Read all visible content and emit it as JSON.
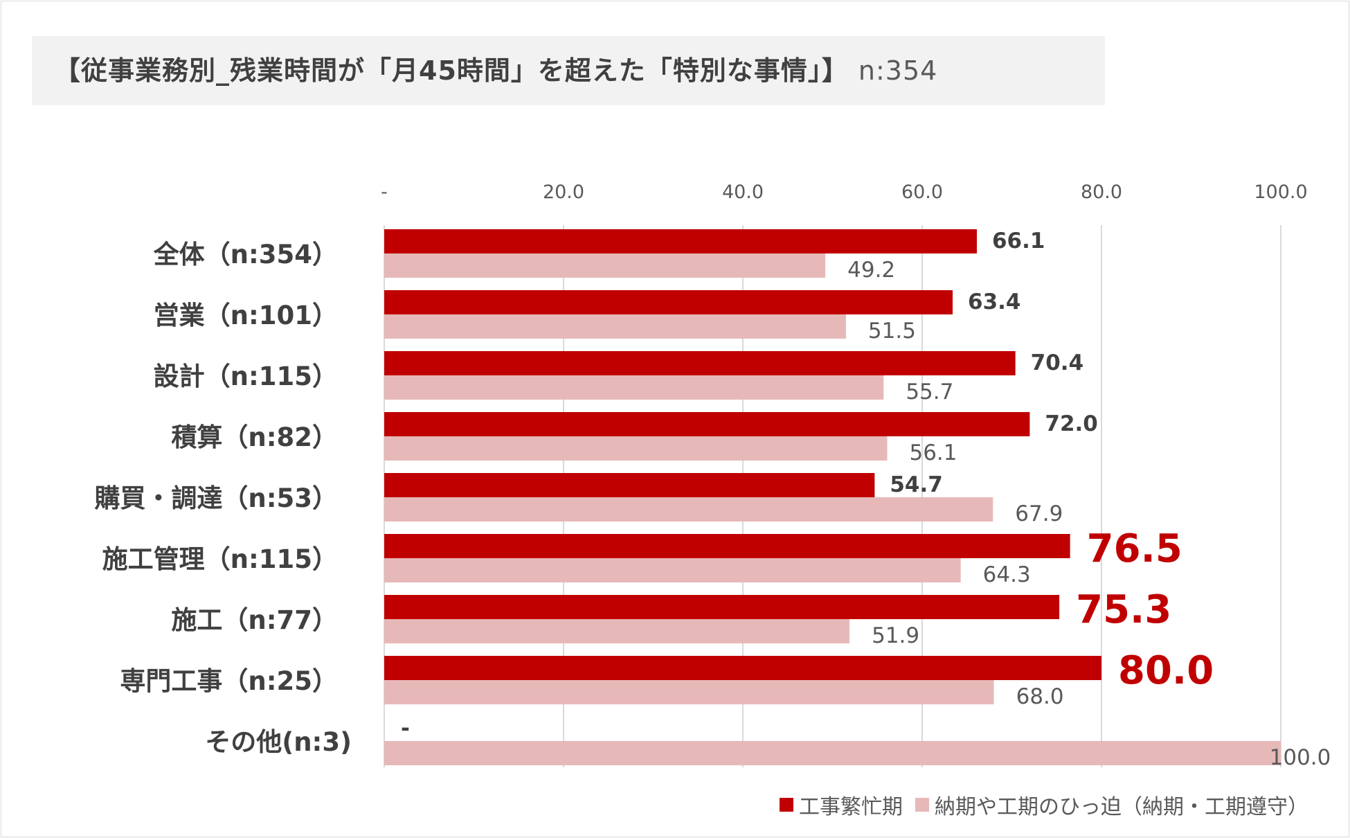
{
  "title": "【従事業務別_残業時間が「月45時間」を超えた「特別な事情」】",
  "subtitle": "n:354",
  "colors": {
    "series1": "#c00000",
    "series2": "#e6b9b8",
    "highlight_label": "#c00000",
    "label": "#404040",
    "axis": "#595959",
    "grid": "#d9d9d9"
  },
  "chart_data": {
    "type": "bar",
    "orientation": "horizontal",
    "categories": [
      "全体（n:354）",
      "営業（n:101）",
      "設計（n:115）",
      "積算（n:82）",
      "購買・調達（n:53）",
      "施工管理（n:115）",
      "施工（n:77）",
      "専門工事（n:25）",
      "その他(n:3)"
    ],
    "series": [
      {
        "name": "工事繁忙期",
        "values": [
          66.1,
          63.4,
          70.4,
          72.0,
          54.7,
          76.5,
          75.3,
          80.0,
          null
        ],
        "labels": [
          "66.1",
          "63.4",
          "70.4",
          "72.0",
          "54.7",
          "76.5",
          "75.3",
          "80.0",
          "-"
        ],
        "highlighted": [
          false,
          false,
          false,
          false,
          false,
          true,
          true,
          true,
          false
        ]
      },
      {
        "name": "納期や工期のひっ迫（納期・工期遵守）",
        "values": [
          49.2,
          51.5,
          55.7,
          56.1,
          67.9,
          64.3,
          51.9,
          68.0,
          100.0
        ],
        "labels": [
          "49.2",
          "51.5",
          "55.7",
          "56.1",
          "67.9",
          "64.3",
          "51.9",
          "68.0",
          "100.0"
        ]
      }
    ],
    "xlim": [
      0,
      100
    ],
    "x_ticks": [
      "-",
      "20.0",
      "40.0",
      "60.0",
      "80.0",
      "100.0"
    ],
    "x_axis_position": "top",
    "grid": true,
    "legend_position": "bottom-right"
  }
}
